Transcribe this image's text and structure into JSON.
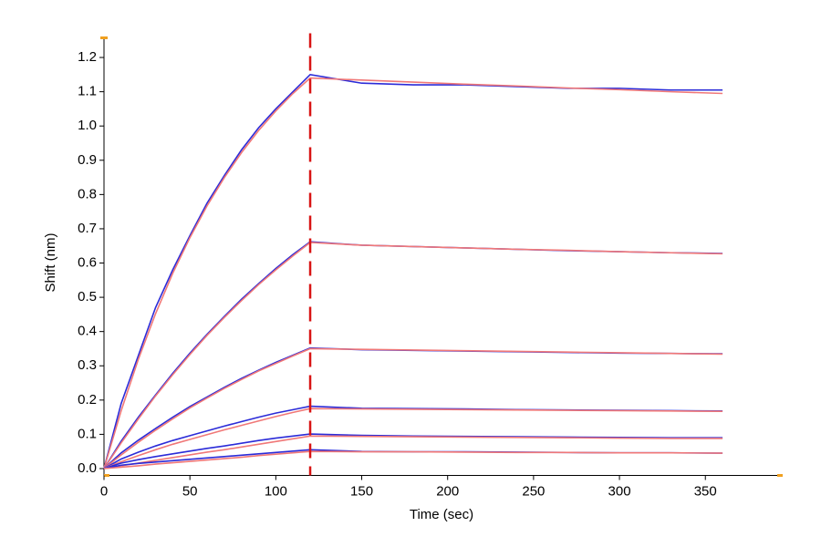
{
  "chart_data": {
    "type": "line",
    "x_label": "Time (sec)",
    "y_label": "Shift (nm)",
    "x": [
      0,
      10,
      20,
      30,
      40,
      50,
      60,
      70,
      80,
      90,
      100,
      110,
      120,
      150,
      180,
      210,
      240,
      270,
      300,
      330,
      360
    ],
    "series": [
      {
        "color": "#2b2bd8",
        "values": [
          0,
          0.19,
          0.33,
          0.47,
          0.58,
          0.68,
          0.775,
          0.855,
          0.93,
          0.995,
          1.05,
          1.1,
          1.15,
          1.125,
          1.12,
          1.12,
          1.115,
          1.11,
          1.11,
          1.105,
          1.105
        ]
      },
      {
        "color": "#f07878",
        "values": [
          0,
          0.169,
          0.319,
          0.452,
          0.57,
          0.674,
          0.767,
          0.849,
          0.922,
          0.987,
          1.044,
          1.095,
          1.14,
          1.134,
          1.128,
          1.122,
          1.117,
          1.111,
          1.106,
          1.1,
          1.095
        ]
      },
      {
        "color": "#2b2bd8",
        "values": [
          0,
          0.08,
          0.15,
          0.215,
          0.278,
          0.337,
          0.392,
          0.444,
          0.494,
          0.54,
          0.584,
          0.625,
          0.662,
          0.652,
          0.648,
          0.644,
          0.64,
          0.636,
          0.633,
          0.63,
          0.628
        ]
      },
      {
        "color": "#f07878",
        "values": [
          0,
          0.075,
          0.145,
          0.212,
          0.274,
          0.333,
          0.389,
          0.441,
          0.49,
          0.537,
          0.58,
          0.621,
          0.66,
          0.652,
          0.648,
          0.644,
          0.64,
          0.637,
          0.633,
          0.63,
          0.627
        ]
      },
      {
        "color": "#2b2bd8",
        "values": [
          0,
          0.046,
          0.083,
          0.117,
          0.15,
          0.181,
          0.209,
          0.237,
          0.263,
          0.287,
          0.31,
          0.331,
          0.352,
          0.347,
          0.345,
          0.343,
          0.341,
          0.339,
          0.337,
          0.336,
          0.335
        ]
      },
      {
        "color": "#f07878",
        "values": [
          0,
          0.04,
          0.077,
          0.112,
          0.145,
          0.177,
          0.206,
          0.234,
          0.26,
          0.285,
          0.307,
          0.329,
          0.35,
          0.348,
          0.346,
          0.344,
          0.342,
          0.34,
          0.338,
          0.336,
          0.334
        ]
      },
      {
        "color": "#2b2bd8",
        "values": [
          0,
          0.028,
          0.048,
          0.066,
          0.082,
          0.096,
          0.11,
          0.124,
          0.137,
          0.15,
          0.162,
          0.172,
          0.182,
          0.176,
          0.175,
          0.174,
          0.172,
          0.171,
          0.17,
          0.169,
          0.168
        ]
      },
      {
        "color": "#f07878",
        "values": [
          0,
          0.02,
          0.038,
          0.055,
          0.071,
          0.085,
          0.099,
          0.113,
          0.126,
          0.139,
          0.152,
          0.164,
          0.175,
          0.174,
          0.173,
          0.172,
          0.171,
          0.17,
          0.169,
          0.168,
          0.167
        ]
      },
      {
        "color": "#2b2bd8",
        "values": [
          0,
          0.016,
          0.026,
          0.035,
          0.043,
          0.051,
          0.059,
          0.066,
          0.074,
          0.082,
          0.089,
          0.095,
          0.101,
          0.097,
          0.095,
          0.094,
          0.093,
          0.092,
          0.091,
          0.09,
          0.09
        ]
      },
      {
        "color": "#f07878",
        "values": [
          0,
          0.008,
          0.016,
          0.024,
          0.032,
          0.04,
          0.048,
          0.055,
          0.063,
          0.071,
          0.079,
          0.087,
          0.095,
          0.094,
          0.093,
          0.092,
          0.091,
          0.09,
          0.089,
          0.088,
          0.088
        ]
      },
      {
        "color": "#2b2bd8",
        "values": [
          0,
          0.01,
          0.015,
          0.019,
          0.023,
          0.027,
          0.031,
          0.035,
          0.039,
          0.043,
          0.047,
          0.051,
          0.055,
          0.05,
          0.049,
          0.049,
          0.048,
          0.047,
          0.046,
          0.046,
          0.045
        ]
      },
      {
        "color": "#f07878",
        "values": [
          0,
          0.004,
          0.008,
          0.013,
          0.017,
          0.021,
          0.025,
          0.029,
          0.033,
          0.038,
          0.042,
          0.046,
          0.05,
          0.049,
          0.049,
          0.048,
          0.047,
          0.047,
          0.046,
          0.046,
          0.045
        ]
      }
    ],
    "vline": 120,
    "vline_color": "#d81414",
    "xlim": [
      0,
      395
    ],
    "ylim": [
      -0.02,
      1.26
    ],
    "xticks": [
      0,
      50,
      100,
      150,
      200,
      250,
      300,
      350
    ],
    "yticks": [
      {
        "value": 0,
        "label": "0.0"
      },
      0.1,
      0.2,
      0.3,
      0.4,
      0.5,
      0.6,
      0.7,
      0.8,
      0.9,
      {
        "value": 1,
        "label": "1.0"
      },
      1.1,
      1.2
    ]
  }
}
